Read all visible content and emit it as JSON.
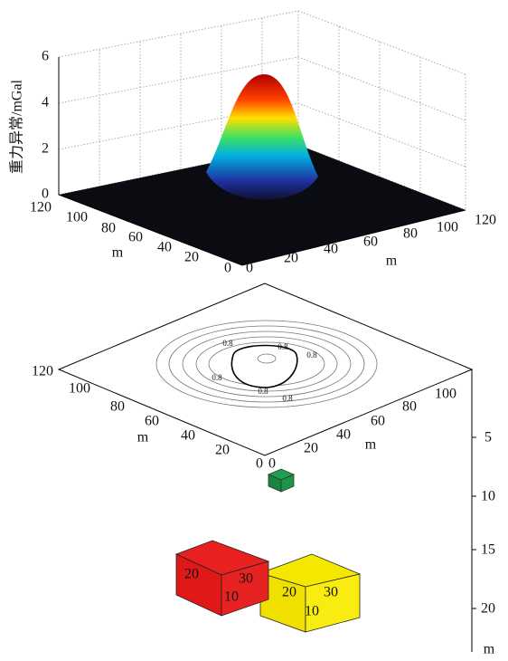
{
  "surface_plot": {
    "z_label": "重力异常/mGal",
    "z_ticks": [
      "0",
      "2",
      "4",
      "6"
    ],
    "x_ticks": [
      "120",
      "100",
      "80",
      "60",
      "40",
      "20",
      "0"
    ],
    "x_label": "m",
    "y_ticks": [
      "0",
      "20",
      "40",
      "60",
      "80",
      "100",
      "120"
    ],
    "y_label": "m"
  },
  "model_plot": {
    "contour_labels": [
      "0.8",
      "0.8",
      "0.8",
      "0.8",
      "0.8",
      "0.8"
    ],
    "x_ticks": [
      "120",
      "100",
      "80",
      "60",
      "40",
      "20",
      "0"
    ],
    "x_label": "m",
    "y_ticks": [
      "0",
      "20",
      "40",
      "60",
      "80",
      "100"
    ],
    "y_label": "m",
    "depth_ticks": [
      "5",
      "10",
      "15",
      "20"
    ],
    "depth_label": "m",
    "red_block": [
      "20",
      "30",
      "10"
    ],
    "yellow_block": [
      "20",
      "30",
      "10"
    ]
  }
}
